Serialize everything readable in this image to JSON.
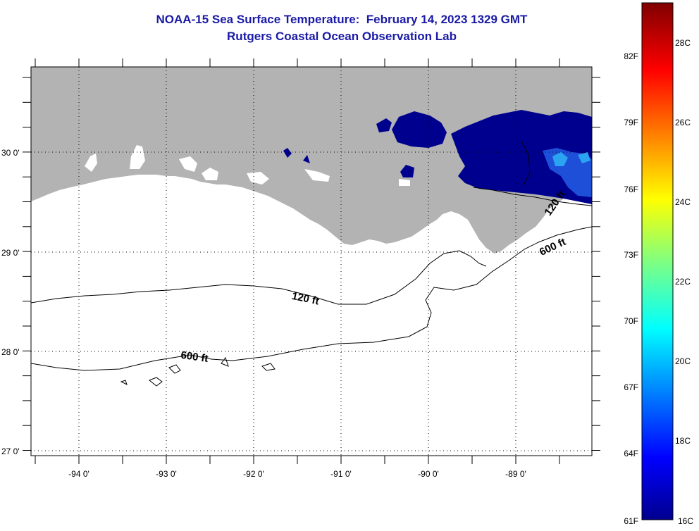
{
  "title": {
    "line1": "NOAA-15 Sea Surface Temperature:  February 14, 2023 1329 GMT",
    "line2": "Rutgers Coastal Ocean Observation Lab"
  },
  "colors": {
    "title": "#1a1aa6",
    "land": "#b3b3b3",
    "sst_cold": "#00008f",
    "sst_mid": "#1e4fd8",
    "sst_warm": "#2aa3f0",
    "no_data": "#ffffff"
  },
  "map": {
    "lon_labels": [
      "-94 0'",
      "-93 0'",
      "-92 0'",
      "-91 0'",
      "-90 0'",
      "-89 0'"
    ],
    "lat_labels": [
      "30 0'",
      "29 0'",
      "28 0'",
      "27 0'"
    ],
    "contour_labels": [
      "120 ft",
      "600 ft",
      "120 ft",
      "600 ft"
    ],
    "grid": "dotted"
  },
  "colorbar": {
    "f_labels": [
      "82F",
      "79F",
      "76F",
      "73F",
      "70F",
      "67F",
      "64F",
      "61F"
    ],
    "c_labels": [
      "28C",
      "26C",
      "24C",
      "22C",
      "20C",
      "18C",
      "16C"
    ],
    "palette": "jet"
  }
}
